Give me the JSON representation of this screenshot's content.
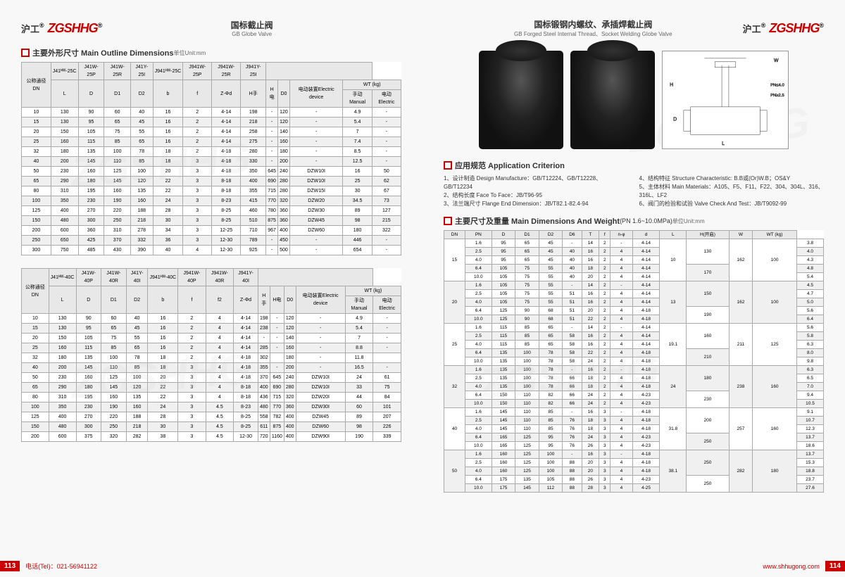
{
  "brand": {
    "cn": "沪工",
    "en": "ZGSHHG",
    "r": "®"
  },
  "pL": {
    "title": {
      "cn": "国标截止阀",
      "en": "GB Globe Valve"
    },
    "s1": {
      "h": "主要外形尺寸 Main Outline Dimensions",
      "unit": "单位Unit:mm"
    },
    "t1": {
      "hdr1": [
        "",
        "J41ᴴᵂ-25C",
        "J41W-25P",
        "J41W-25R",
        "J41Y-25I",
        "J941ᴴᵂ-25C",
        "J941W-25P",
        "J941W-25R",
        "J941Y-25I"
      ],
      "hdr2": [
        "公称通径DN",
        "L",
        "D",
        "D1",
        "D2",
        "b",
        "f",
        "Z-Φd",
        "H手",
        "H电",
        "D0",
        "电动装置Electric device",
        "WT (kg)"
      ],
      "hdr3": [
        "手动Manual",
        "电动Electric"
      ],
      "rows": [
        [
          "10",
          "130",
          "90",
          "60",
          "40",
          "16",
          "2",
          "4-14",
          "198",
          "-",
          "120",
          "-",
          "4.9",
          "-"
        ],
        [
          "15",
          "130",
          "95",
          "65",
          "45",
          "16",
          "2",
          "4-14",
          "218",
          "-",
          "120",
          "-",
          "5.4",
          "-"
        ],
        [
          "20",
          "150",
          "105",
          "75",
          "55",
          "16",
          "2",
          "4-14",
          "258",
          "-",
          "140",
          "-",
          "7",
          "-"
        ],
        [
          "25",
          "160",
          "115",
          "85",
          "65",
          "16",
          "2",
          "4-14",
          "275",
          "-",
          "160",
          "-",
          "7.4",
          "-"
        ],
        [
          "32",
          "180",
          "135",
          "100",
          "78",
          "18",
          "2",
          "4-18",
          "280",
          "-",
          "180",
          "-",
          "8.5",
          "-"
        ],
        [
          "40",
          "200",
          "145",
          "110",
          "85",
          "18",
          "3",
          "4-18",
          "330",
          "-",
          "200",
          "-",
          "12.5",
          "-"
        ],
        [
          "50",
          "230",
          "160",
          "125",
          "100",
          "20",
          "3",
          "4-18",
          "350",
          "645",
          "240",
          "DZW10I",
          "16",
          "50"
        ],
        [
          "65",
          "290",
          "180",
          "145",
          "120",
          "22",
          "3",
          "8-18",
          "400",
          "690",
          "280",
          "DZW10I",
          "25",
          "62"
        ],
        [
          "80",
          "310",
          "195",
          "160",
          "135",
          "22",
          "3",
          "8-18",
          "355",
          "715",
          "280",
          "DZW15I",
          "30",
          "67"
        ],
        [
          "100",
          "350",
          "230",
          "190",
          "160",
          "24",
          "3",
          "8-23",
          "415",
          "770",
          "320",
          "DZW20",
          "34.5",
          "73"
        ],
        [
          "125",
          "400",
          "270",
          "220",
          "188",
          "28",
          "3",
          "8-25",
          "460",
          "780",
          "360",
          "DZW30",
          "89",
          "127"
        ],
        [
          "150",
          "480",
          "300",
          "250",
          "218",
          "30",
          "3",
          "8-25",
          "510",
          "875",
          "360",
          "DZW45",
          "98",
          "215"
        ],
        [
          "200",
          "600",
          "360",
          "310",
          "278",
          "34",
          "3",
          "12-25",
          "710",
          "967",
          "400",
          "DZW60",
          "180",
          "322"
        ],
        [
          "250",
          "650",
          "425",
          "370",
          "332",
          "36",
          "3",
          "12-30",
          "789",
          "-",
          "450",
          "-",
          "446",
          "-"
        ],
        [
          "300",
          "750",
          "485",
          "430",
          "390",
          "40",
          "4",
          "12-30",
          "925",
          "-",
          "500",
          "-",
          "654",
          "-"
        ]
      ]
    },
    "t2": {
      "hdr1": [
        "",
        "J41ᴴᵂ-40C",
        "J41W-40P",
        "J41W-40R",
        "J41Y-40I",
        "J941ᴴᵂ-40C",
        "J941W-40P",
        "J941W-40R",
        "J941Y-40I"
      ],
      "hdr2": [
        "公称通径DN",
        "L",
        "D",
        "D1",
        "D2",
        "b",
        "f",
        "f2",
        "Z-Φd",
        "H手",
        "H电",
        "D0",
        "电动装置Electric device",
        "WT (kg)"
      ],
      "rows": [
        [
          "10",
          "130",
          "90",
          "60",
          "40",
          "16",
          "2",
          "4",
          "4-14",
          "198",
          "-",
          "120",
          "-",
          "4.9",
          "-"
        ],
        [
          "15",
          "130",
          "95",
          "65",
          "45",
          "16",
          "2",
          "4",
          "4-14",
          "238",
          "-",
          "120",
          "-",
          "5.4",
          "-"
        ],
        [
          "20",
          "150",
          "105",
          "75",
          "55",
          "16",
          "2",
          "4",
          "4-14",
          "-",
          "-",
          "140",
          "-",
          "7",
          "-"
        ],
        [
          "25",
          "160",
          "115",
          "85",
          "65",
          "16",
          "2",
          "4",
          "4-14",
          "285",
          "-",
          "160",
          "-",
          "8.8",
          "-"
        ],
        [
          "32",
          "180",
          "135",
          "100",
          "78",
          "18",
          "2",
          "4",
          "4-18",
          "302",
          "",
          "180",
          "-",
          "11.8",
          ""
        ],
        [
          "40",
          "200",
          "145",
          "110",
          "85",
          "18",
          "3",
          "4",
          "4-18",
          "355",
          "-",
          "200",
          "-",
          "16.5",
          "-"
        ],
        [
          "50",
          "230",
          "160",
          "125",
          "100",
          "20",
          "3",
          "4",
          "4-18",
          "370",
          "645",
          "240",
          "DZW10I",
          "24",
          "61"
        ],
        [
          "65",
          "290",
          "180",
          "145",
          "120",
          "22",
          "3",
          "4",
          "8-18",
          "400",
          "690",
          "280",
          "DZW10I",
          "33",
          "75"
        ],
        [
          "80",
          "310",
          "195",
          "160",
          "135",
          "22",
          "3",
          "4",
          "8-18",
          "436",
          "715",
          "320",
          "DZW20I",
          "44",
          "84"
        ],
        [
          "100",
          "350",
          "230",
          "190",
          "160",
          "24",
          "3",
          "4.5",
          "8-23",
          "480",
          "770",
          "360",
          "DZW30I",
          "60",
          "101"
        ],
        [
          "125",
          "400",
          "270",
          "220",
          "188",
          "28",
          "3",
          "4.5",
          "8-25",
          "558",
          "782",
          "400",
          "DZW45",
          "89",
          "207"
        ],
        [
          "150",
          "480",
          "300",
          "250",
          "218",
          "30",
          "3",
          "4.5",
          "8-25",
          "611",
          "875",
          "400",
          "DZW60",
          "98",
          "226"
        ],
        [
          "200",
          "600",
          "375",
          "320",
          "282",
          "38",
          "3",
          "4.5",
          "12-30",
          "720",
          "1160",
          "400",
          "DZW90I",
          "190",
          "339"
        ]
      ]
    },
    "footer": {
      "pn": "113",
      "tel": "电话(Tel)：021-56941122"
    }
  },
  "pR": {
    "title": {
      "cn": "国标锻钢内螺纹、承插焊截止阀",
      "en": "GB Forged Steel Internal Thread、Socket Welding Globe Valve"
    },
    "crit": {
      "h": "应用规范 Application Criterion",
      "items": [
        "1、设计制造 Design Manufacture：GB/T12224、GB/T12228、GB/T12234",
        "2、结构长度 Face To Face：JB/T96-95",
        "3、法兰端尺寸 Flange End Dimension：JB/T82.1-82.4-94",
        "4、结构特征 Structure Characteristic: B.B或(Or)W.B；OS&Y",
        "5、主体材料 Main Materials：A105、F5、F11、F22、304、304L、316、316L、LF2",
        "6、阀门的检验和试验 Valve Check And Test：JB/T9092-99"
      ]
    },
    "s2": {
      "h": "主要尺寸及重量 Main Dimensions And Weight",
      "sub": "(PN 1.6~10.0MPa)",
      "unit": "单位Unit:mm"
    },
    "t3": {
      "hdr": [
        "DN",
        "PN",
        "D",
        "D1",
        "D2",
        "D6",
        "T",
        "f",
        "n-φ",
        "d",
        "L",
        "H(开启)",
        "W",
        "WT (kg)"
      ],
      "groups": [
        {
          "dn": "15",
          "d": "10",
          "lhw": [
            [
              "130",
              "162",
              "100"
            ],
            [
              "170",
              "",
              ""
            ]
          ],
          "rows": [
            [
              "1.6",
              "95",
              "65",
              "45",
              "-",
              "14",
              "2",
              "-",
              "4-14",
              "3.8"
            ],
            [
              "2.5",
              "95",
              "65",
              "45",
              "40",
              "16",
              "2",
              "4",
              "4-14",
              "4.0"
            ],
            [
              "4.0",
              "95",
              "65",
              "45",
              "40",
              "16",
              "2",
              "4",
              "4-14",
              "4.3"
            ],
            [
              "6.4",
              "105",
              "75",
              "55",
              "40",
              "18",
              "2",
              "4",
              "4-14",
              "4.8"
            ],
            [
              "10.0",
              "105",
              "75",
              "55",
              "40",
              "20",
              "2",
              "4",
              "4-14",
              "5.4"
            ]
          ]
        },
        {
          "dn": "20",
          "d": "13",
          "lhw": [
            [
              "150",
              "162",
              "100"
            ],
            [
              "190",
              "",
              ""
            ]
          ],
          "rows": [
            [
              "1.6",
              "105",
              "75",
              "55",
              "-",
              "14",
              "2",
              "-",
              "4-14",
              "4.5"
            ],
            [
              "2.5",
              "105",
              "75",
              "55",
              "51",
              "16",
              "2",
              "4",
              "4-14",
              "4.7"
            ],
            [
              "4.0",
              "105",
              "75",
              "55",
              "51",
              "16",
              "2",
              "4",
              "4-14",
              "5.0"
            ],
            [
              "6.4",
              "125",
              "90",
              "68",
              "51",
              "20",
              "2",
              "4",
              "4-18",
              "5.6"
            ],
            [
              "10.0",
              "125",
              "90",
              "68",
              "51",
              "22",
              "2",
              "4",
              "4-18",
              "6.4"
            ]
          ]
        },
        {
          "dn": "25",
          "d": "19.1",
          "lhw": [
            [
              "160",
              "211",
              "125"
            ],
            [
              "210",
              "",
              ""
            ]
          ],
          "rows": [
            [
              "1.6",
              "115",
              "85",
              "65",
              "-",
              "14",
              "2",
              "-",
              "4-14",
              "5.6"
            ],
            [
              "2.5",
              "115",
              "85",
              "65",
              "58",
              "16",
              "2",
              "4",
              "4-14",
              "5.8"
            ],
            [
              "4.0",
              "115",
              "85",
              "65",
              "58",
              "16",
              "2",
              "4",
              "4-14",
              "6.3"
            ],
            [
              "6.4",
              "135",
              "100",
              "78",
              "58",
              "22",
              "2",
              "4",
              "4-18",
              "8.0"
            ],
            [
              "10.0",
              "135",
              "100",
              "78",
              "58",
              "24",
              "2",
              "4",
              "4-18",
              "9.8"
            ]
          ]
        },
        {
          "dn": "32",
          "d": "24",
          "lhw": [
            [
              "180",
              "238",
              "160"
            ],
            [
              "230",
              "",
              ""
            ]
          ],
          "rows": [
            [
              "1.6",
              "135",
              "100",
              "78",
              "-",
              "16",
              "2",
              "-",
              "4-18",
              "6.3"
            ],
            [
              "2.5",
              "135",
              "100",
              "78",
              "66",
              "18",
              "2",
              "4",
              "4-18",
              "6.5"
            ],
            [
              "4.0",
              "135",
              "100",
              "78",
              "66",
              "18",
              "2",
              "4",
              "4-18",
              "7.0"
            ],
            [
              "6.4",
              "150",
              "110",
              "82",
              "66",
              "24",
              "2",
              "4",
              "4-23",
              "9.4"
            ],
            [
              "10.0",
              "150",
              "110",
              "82",
              "66",
              "24",
              "2",
              "4",
              "4-23",
              "10.5"
            ]
          ]
        },
        {
          "dn": "40",
          "d": "31.8",
          "lhw": [
            [
              "200",
              "257",
              "160"
            ],
            [
              "250",
              "",
              ""
            ]
          ],
          "rows": [
            [
              "1.6",
              "145",
              "110",
              "85",
              "-",
              "16",
              "3",
              "-",
              "4-18",
              "9.1"
            ],
            [
              "2.5",
              "145",
              "110",
              "85",
              "76",
              "18",
              "3",
              "4",
              "4-18",
              "10.7"
            ],
            [
              "4.0",
              "145",
              "110",
              "85",
              "76",
              "18",
              "3",
              "4",
              "4-18",
              "12.3"
            ],
            [
              "6.4",
              "165",
              "125",
              "95",
              "76",
              "24",
              "3",
              "4",
              "4-23",
              "13.7"
            ],
            [
              "10.0",
              "165",
              "125",
              "95",
              "76",
              "26",
              "3",
              "4",
              "4-23",
              "18.6"
            ]
          ]
        },
        {
          "dn": "50",
          "d": "38.1",
          "lhw": [
            [
              "250",
              "282",
              "180"
            ],
            [
              "250",
              "",
              ""
            ]
          ],
          "rows": [
            [
              "1.6",
              "160",
              "125",
              "100",
              "-",
              "16",
              "3",
              "-",
              "4-18",
              "13.7"
            ],
            [
              "2.5",
              "160",
              "125",
              "100",
              "88",
              "20",
              "3",
              "4",
              "4-18",
              "15.3"
            ],
            [
              "4.0",
              "160",
              "125",
              "100",
              "88",
              "20",
              "3",
              "4",
              "4-18",
              "18.8"
            ],
            [
              "6.4",
              "175",
              "135",
              "105",
              "88",
              "26",
              "3",
              "4",
              "4-23",
              "23.7"
            ],
            [
              "10.0",
              "175",
              "145",
              "112",
              "88",
              "28",
              "3",
              "4",
              "4-25",
              "27.6"
            ]
          ]
        }
      ]
    },
    "footer": {
      "pn": "114",
      "url": "www.shhugong.com"
    }
  }
}
